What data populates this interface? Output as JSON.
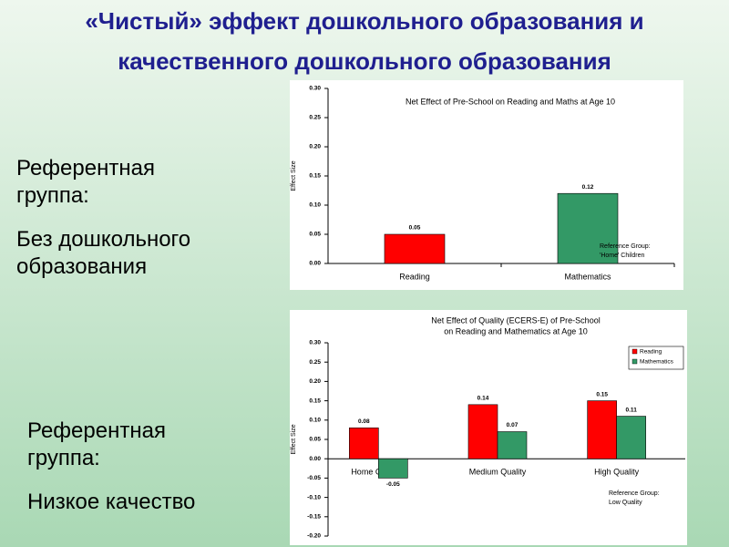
{
  "slide": {
    "title": [
      "«Чистый» эффект дошкольного образования и",
      "качественного дошкольного образования"
    ],
    "notes": [
      {
        "label": "Референтная группа:",
        "value": "Без дошкольного образования"
      },
      {
        "label": "Референтная группа:",
        "value": "Низкое качество"
      }
    ]
  },
  "chart_data": [
    {
      "type": "bar",
      "title": [
        "Net Effect of Pre-School on Reading and Maths  at Age 10"
      ],
      "y_label": "Effect Size",
      "categories": [
        "Reading",
        "Mathematics"
      ],
      "values": [
        0.05,
        0.12
      ],
      "colors": [
        "#ff0000",
        "#339966"
      ],
      "ylim": [
        0,
        0.3
      ],
      "yticks": [
        {
          "value": 0,
          "label": "0.00"
        },
        {
          "value": 0.05,
          "label": "0.05"
        },
        {
          "value": 0.1,
          "label": "0.10"
        },
        {
          "value": 0.15,
          "label": "0.15"
        },
        {
          "value": 0.2,
          "label": "0.20"
        },
        {
          "value": 0.25,
          "label": "0.25"
        },
        {
          "value": 0.3,
          "label": "0.30"
        }
      ],
      "annotation": [
        "Reference Group:",
        "'Home' Children"
      ]
    },
    {
      "type": "grouped_bar",
      "title": [
        "Net Effect of Quality (ECERS-E) of Pre-School",
        "on Reading and Mathematics at Age 10"
      ],
      "y_label": "Effect Size",
      "categories": [
        "Home Children",
        "Medium Quality",
        "High Quality"
      ],
      "series": [
        {
          "name": "Reading",
          "color": "#ff0000",
          "values": [
            0.08,
            0.14,
            0.15
          ]
        },
        {
          "name": "Mathematics",
          "color": "#339966",
          "values": [
            -0.05,
            0.07,
            0.11
          ]
        }
      ],
      "ylim": [
        -0.2,
        0.3
      ],
      "yticks": [
        {
          "value": -0.2,
          "label": "-0.20"
        },
        {
          "value": -0.15,
          "label": "-0.15"
        },
        {
          "value": -0.1,
          "label": "-0.10"
        },
        {
          "value": -0.05,
          "label": "-0.05"
        },
        {
          "value": 0,
          "label": "0.00"
        },
        {
          "value": 0.05,
          "label": "0.05"
        },
        {
          "value": 0.1,
          "label": "0.10"
        },
        {
          "value": 0.15,
          "label": "0.15"
        },
        {
          "value": 0.2,
          "label": "0.20"
        },
        {
          "value": 0.25,
          "label": "0.25"
        },
        {
          "value": 0.3,
          "label": "0.30"
        }
      ],
      "legend": "top-right",
      "annotation": [
        "Reference Group:",
        "Low Quality"
      ]
    }
  ]
}
